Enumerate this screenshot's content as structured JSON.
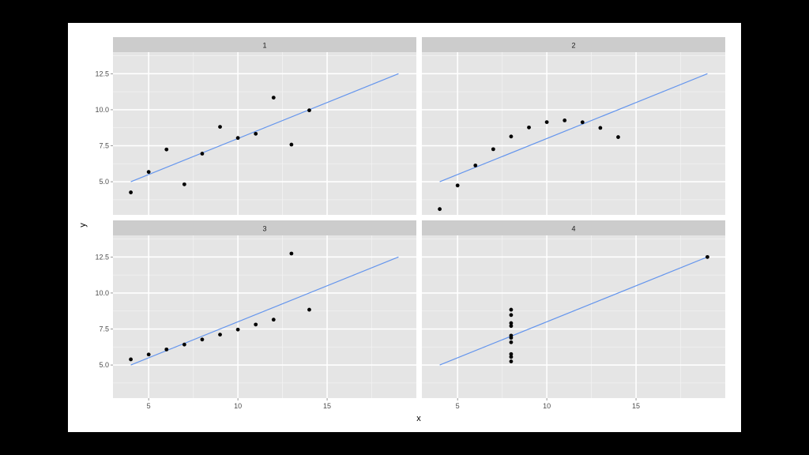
{
  "chart_data": {
    "type": "scatter",
    "xlabel": "x",
    "ylabel": "y",
    "xlim": [
      3,
      20
    ],
    "ylim": [
      2.7,
      14.0
    ],
    "x_ticks": [
      5,
      10,
      15
    ],
    "x_tick_labels": [
      "5",
      "10",
      "15"
    ],
    "y_ticks": [
      5.0,
      7.5,
      10.0,
      12.5
    ],
    "y_tick_labels": [
      "5.0",
      "7.5",
      "10.0",
      "12.5"
    ],
    "grid": true,
    "colors": {
      "panel_bg": "#e5e5e5",
      "strip_bg": "#cccccc",
      "gridline": "#ffffff",
      "point": "#000000",
      "fit_line": "#6495ed",
      "text": "#4d4d4d"
    },
    "panels": [
      {
        "label": "1",
        "x": [
          4,
          5,
          6,
          7,
          8,
          9,
          10,
          11,
          12,
          13,
          14
        ],
        "y": [
          4.26,
          5.68,
          7.24,
          4.82,
          6.95,
          8.81,
          8.04,
          8.33,
          10.84,
          7.58,
          9.96
        ],
        "fit": {
          "x": [
            4,
            19
          ],
          "y": [
            5.0,
            12.5
          ]
        }
      },
      {
        "label": "2",
        "x": [
          4,
          5,
          6,
          7,
          8,
          9,
          10,
          11,
          12,
          13,
          14
        ],
        "y": [
          3.1,
          4.74,
          6.13,
          7.26,
          8.14,
          8.77,
          9.14,
          9.26,
          9.13,
          8.74,
          8.1
        ],
        "fit": {
          "x": [
            4,
            19
          ],
          "y": [
            5.0,
            12.5
          ]
        }
      },
      {
        "label": "3",
        "x": [
          4,
          5,
          6,
          7,
          8,
          9,
          10,
          11,
          12,
          13,
          14
        ],
        "y": [
          5.39,
          5.73,
          6.08,
          6.42,
          6.77,
          7.11,
          7.46,
          7.81,
          8.15,
          12.74,
          8.84
        ],
        "fit": {
          "x": [
            4,
            19
          ],
          "y": [
            5.0,
            12.5
          ]
        }
      },
      {
        "label": "4",
        "x": [
          8,
          8,
          8,
          8,
          8,
          8,
          8,
          8,
          8,
          8,
          19
        ],
        "y": [
          5.25,
          5.56,
          5.76,
          6.58,
          6.89,
          7.04,
          7.71,
          7.91,
          8.47,
          8.84,
          12.5
        ],
        "fit": {
          "x": [
            4,
            19
          ],
          "y": [
            5.0,
            12.5
          ]
        }
      }
    ]
  }
}
